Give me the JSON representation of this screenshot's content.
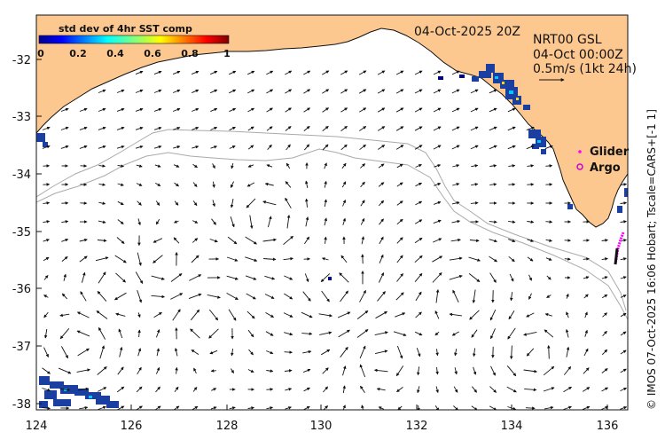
{
  "map": {
    "title": "04-Oct-2025 20Z",
    "info_lines": [
      "NRT00 GSL",
      "04-Oct 00:00Z",
      "0.5m/s (1kt 24h)"
    ],
    "colorbar": {
      "title": "std dev of 4hr SST comp",
      "ticks": [
        "0",
        "0.2",
        "0.4",
        "0.6",
        "0.8",
        "1"
      ]
    },
    "legend": {
      "glider": "Glider",
      "argo": "Argo"
    },
    "credit": "© IMOS 07-Oct-2025 16:06 Hobart; Tscale=CARS+[-1 1]",
    "x_ticks": [
      "124",
      "126",
      "128",
      "130",
      "132",
      "134",
      "136"
    ],
    "y_ticks": [
      "-32",
      "-33",
      "-34",
      "-35",
      "-36",
      "-37",
      "-38"
    ],
    "colors": {
      "land": "#fdc890",
      "arrow": "#111111",
      "bathy": "#aaaaaa",
      "glider": "#ff00ff",
      "argo": "#cc00cc",
      "sst_patch": "#1a3fa0"
    }
  }
}
